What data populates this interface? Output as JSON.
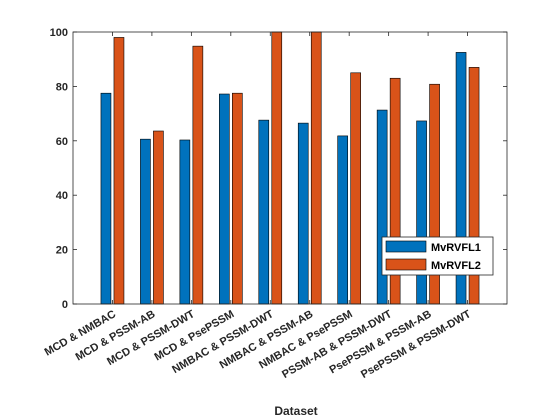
{
  "chart_data": {
    "type": "bar",
    "title": "",
    "xlabel": "Dataset",
    "ylabel": "",
    "ylim": [
      0,
      100
    ],
    "yticks": [
      0,
      20,
      40,
      60,
      80,
      100
    ],
    "grid": false,
    "legend_position": "lower-right",
    "categories": [
      "MCD & NMBAC",
      "MCD & PSSM-AB",
      "MCD & PSSM-DWT",
      "MCD & PsePSSM",
      "NMBAC & PSSM-DWT",
      "NMBAC & PSSM-AB",
      "NMBAC & PsePSSM",
      "PSSM-AB & PSSM-DWT",
      "PsePSSM & PSSM-AB",
      "PsePSSM & PSSM-DWT"
    ],
    "series": [
      {
        "name": "MvRVFL1",
        "color": "#0072BD",
        "values": [
          77.5,
          60.6,
          60.3,
          77.2,
          67.6,
          66.5,
          61.8,
          71.3,
          67.3,
          92.5
        ]
      },
      {
        "name": "MvRVFL2",
        "color": "#D95319",
        "values": [
          98.0,
          63.6,
          94.8,
          77.5,
          100,
          100,
          85.0,
          83.0,
          80.8,
          87.0
        ]
      }
    ]
  }
}
